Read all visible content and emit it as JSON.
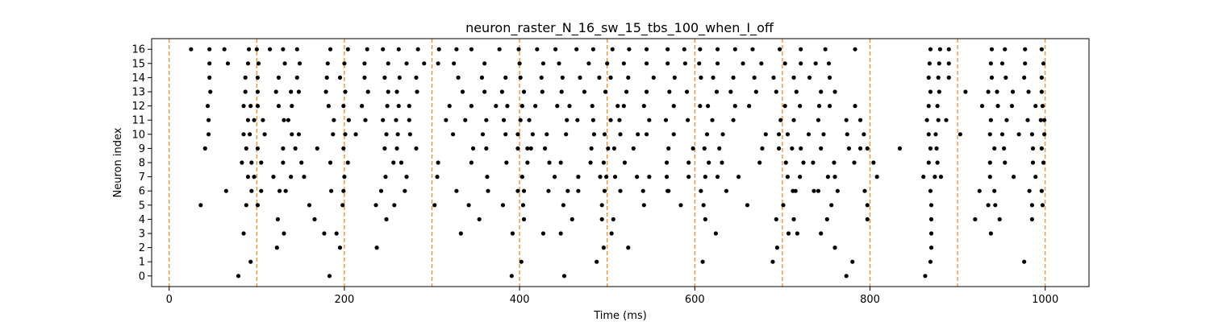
{
  "chart_data": {
    "type": "scatter",
    "title": "neuron_raster_N_16_sw_15_tbs_100_when_I_off",
    "xlabel": "Time (ms)",
    "ylabel": "Neuron index",
    "xlim": [
      -20,
      1050
    ],
    "ylim": [
      -0.75,
      16.75
    ],
    "x_ticks": [
      0,
      200,
      400,
      600,
      800,
      1000
    ],
    "y_ticks": [
      0,
      1,
      2,
      3,
      4,
      5,
      6,
      7,
      8,
      9,
      10,
      11,
      12,
      13,
      14,
      15,
      16
    ],
    "grid": false,
    "marker_color": "#000000",
    "vline_color": "#ff7f0e",
    "vlines": [
      0,
      100,
      200,
      300,
      400,
      500,
      600,
      700,
      800,
      900,
      1000
    ],
    "spikes": {
      "0": [
        79,
        183,
        391,
        451,
        773,
        863
      ],
      "1": [
        93,
        402,
        488,
        609,
        689,
        780,
        869,
        976
      ],
      "2": [
        123,
        195,
        237,
        496,
        524,
        694,
        760,
        870
      ],
      "3": [
        85,
        131,
        177,
        191,
        333,
        392,
        427,
        447,
        505,
        624,
        707,
        717,
        744,
        870,
        938
      ],
      "4": [
        124,
        166,
        248,
        354,
        405,
        460,
        494,
        507,
        612,
        693,
        713,
        751,
        797,
        870,
        920,
        948,
        985
      ],
      "5": [
        36,
        88,
        101,
        160,
        198,
        236,
        257,
        303,
        342,
        381,
        404,
        450,
        494,
        542,
        584,
        610,
        660,
        701,
        756,
        797,
        870,
        935,
        943,
        985,
        997
      ],
      "6": [
        65,
        94,
        105,
        126,
        133,
        185,
        199,
        242,
        269,
        328,
        364,
        398,
        405,
        433,
        455,
        467,
        497,
        515,
        541,
        570,
        569,
        607,
        636,
        712,
        715,
        736,
        741,
        763,
        794,
        869,
        925,
        942,
        982,
        996
      ],
      "7": [
        90,
        97,
        119,
        139,
        154,
        200,
        247,
        271,
        306,
        363,
        403,
        440,
        467,
        492,
        499,
        509,
        534,
        548,
        568,
        593,
        612,
        626,
        650,
        706,
        720,
        752,
        760,
        808,
        861,
        874,
        881,
        937,
        964,
        989
      ],
      "8": [
        83,
        94,
        105,
        130,
        151,
        184,
        204,
        256,
        265,
        307,
        345,
        385,
        409,
        434,
        447,
        481,
        496,
        520,
        568,
        593,
        616,
        631,
        674,
        704,
        724,
        735,
        759,
        782,
        804,
        867,
        877,
        937,
        954,
        986,
        998
      ],
      "9": [
        41,
        88,
        101,
        130,
        144,
        169,
        199,
        246,
        260,
        282,
        347,
        362,
        398,
        409,
        413,
        429,
        482,
        501,
        508,
        530,
        570,
        598,
        611,
        628,
        677,
        696,
        711,
        721,
        744,
        776,
        789,
        797,
        834,
        869,
        876,
        942,
        953,
        986,
        996
      ],
      "10": [
        45,
        85,
        92,
        109,
        140,
        148,
        187,
        201,
        213,
        248,
        261,
        275,
        324,
        358,
        384,
        398,
        415,
        431,
        453,
        485,
        497,
        515,
        535,
        545,
        576,
        614,
        632,
        681,
        696,
        706,
        730,
        747,
        774,
        793,
        867,
        875,
        903,
        937,
        951,
        970,
        985,
        999
      ],
      "11": [
        45,
        90,
        97,
        107,
        136,
        131,
        188,
        205,
        224,
        244,
        259,
        274,
        316,
        338,
        362,
        382,
        401,
        411,
        454,
        466,
        484,
        504,
        514,
        548,
        567,
        592,
        620,
        644,
        698,
        713,
        741,
        773,
        789,
        865,
        878,
        887,
        938,
        956,
        980,
        995,
        999
      ],
      "12": [
        44,
        85,
        93,
        101,
        125,
        140,
        182,
        199,
        220,
        249,
        262,
        274,
        320,
        345,
        373,
        386,
        403,
        418,
        443,
        457,
        483,
        512,
        519,
        542,
        576,
        606,
        615,
        646,
        662,
        703,
        720,
        742,
        754,
        783,
        867,
        877,
        928,
        946,
        962,
        989,
        997
      ],
      "13": [
        47,
        87,
        101,
        122,
        139,
        148,
        179,
        201,
        227,
        250,
        260,
        283,
        335,
        360,
        380,
        405,
        426,
        448,
        474,
        498,
        522,
        545,
        571,
        591,
        625,
        641,
        670,
        693,
        716,
        744,
        760,
        869,
        879,
        909,
        935,
        945,
        963,
        981,
        996
      ],
      "14": [
        46,
        87,
        101,
        125,
        146,
        180,
        195,
        223,
        246,
        263,
        282,
        330,
        357,
        384,
        401,
        425,
        449,
        469,
        491,
        504,
        524,
        553,
        577,
        607,
        621,
        644,
        668,
        690,
        713,
        731,
        754,
        867,
        878,
        890,
        939,
        955,
        976,
        996
      ],
      "15": [
        46,
        67,
        90,
        102,
        132,
        149,
        181,
        200,
        223,
        250,
        271,
        291,
        307,
        325,
        360,
        400,
        427,
        445,
        479,
        500,
        519,
        545,
        569,
        589,
        605,
        626,
        655,
        676,
        703,
        721,
        738,
        753,
        868,
        879,
        890,
        938,
        951,
        977,
        998
      ],
      "16": [
        25,
        46,
        63,
        91,
        100,
        115,
        130,
        146,
        184,
        204,
        226,
        244,
        262,
        284,
        308,
        328,
        345,
        377,
        399,
        420,
        441,
        465,
        484,
        506,
        525,
        545,
        569,
        588,
        606,
        626,
        646,
        666,
        697,
        721,
        749,
        783,
        869,
        880,
        890,
        939,
        954,
        977,
        996
      ]
    }
  }
}
